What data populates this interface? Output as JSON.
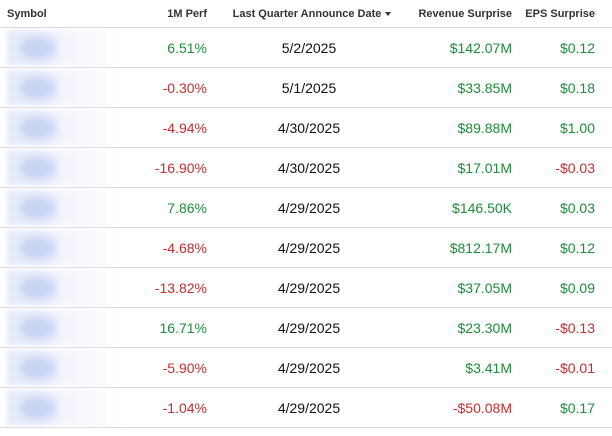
{
  "table": {
    "headers": {
      "symbol": "Symbol",
      "perf": "1M Perf",
      "date": "Last Quarter Announce Date",
      "revenue": "Revenue Surprise",
      "eps": "EPS Surprise"
    },
    "sort_column": "Last Quarter Announce Date",
    "sort_direction": "descending",
    "colors": {
      "positive": "#1e8c3a",
      "negative": "#c62d2d"
    },
    "rows": [
      {
        "perf": "6.51%",
        "date": "5/2/2025",
        "revenue": "$142.07M",
        "eps": "$0.12"
      },
      {
        "perf": "-0.30%",
        "date": "5/1/2025",
        "revenue": "$33.85M",
        "eps": "$0.18"
      },
      {
        "perf": "-4.94%",
        "date": "4/30/2025",
        "revenue": "$89.88M",
        "eps": "$1.00"
      },
      {
        "perf": "-16.90%",
        "date": "4/30/2025",
        "revenue": "$17.01M",
        "eps": "-$0.03"
      },
      {
        "perf": "7.86%",
        "date": "4/29/2025",
        "revenue": "$146.50K",
        "eps": "$0.03"
      },
      {
        "perf": "-4.68%",
        "date": "4/29/2025",
        "revenue": "$812.17M",
        "eps": "$0.12"
      },
      {
        "perf": "-13.82%",
        "date": "4/29/2025",
        "revenue": "$37.05M",
        "eps": "$0.09"
      },
      {
        "perf": "16.71%",
        "date": "4/29/2025",
        "revenue": "$23.30M",
        "eps": "-$0.13"
      },
      {
        "perf": "-5.90%",
        "date": "4/29/2025",
        "revenue": "$3.41M",
        "eps": "-$0.01"
      },
      {
        "perf": "-1.04%",
        "date": "4/29/2025",
        "revenue": "-$50.08M",
        "eps": "$0.17"
      }
    ]
  }
}
